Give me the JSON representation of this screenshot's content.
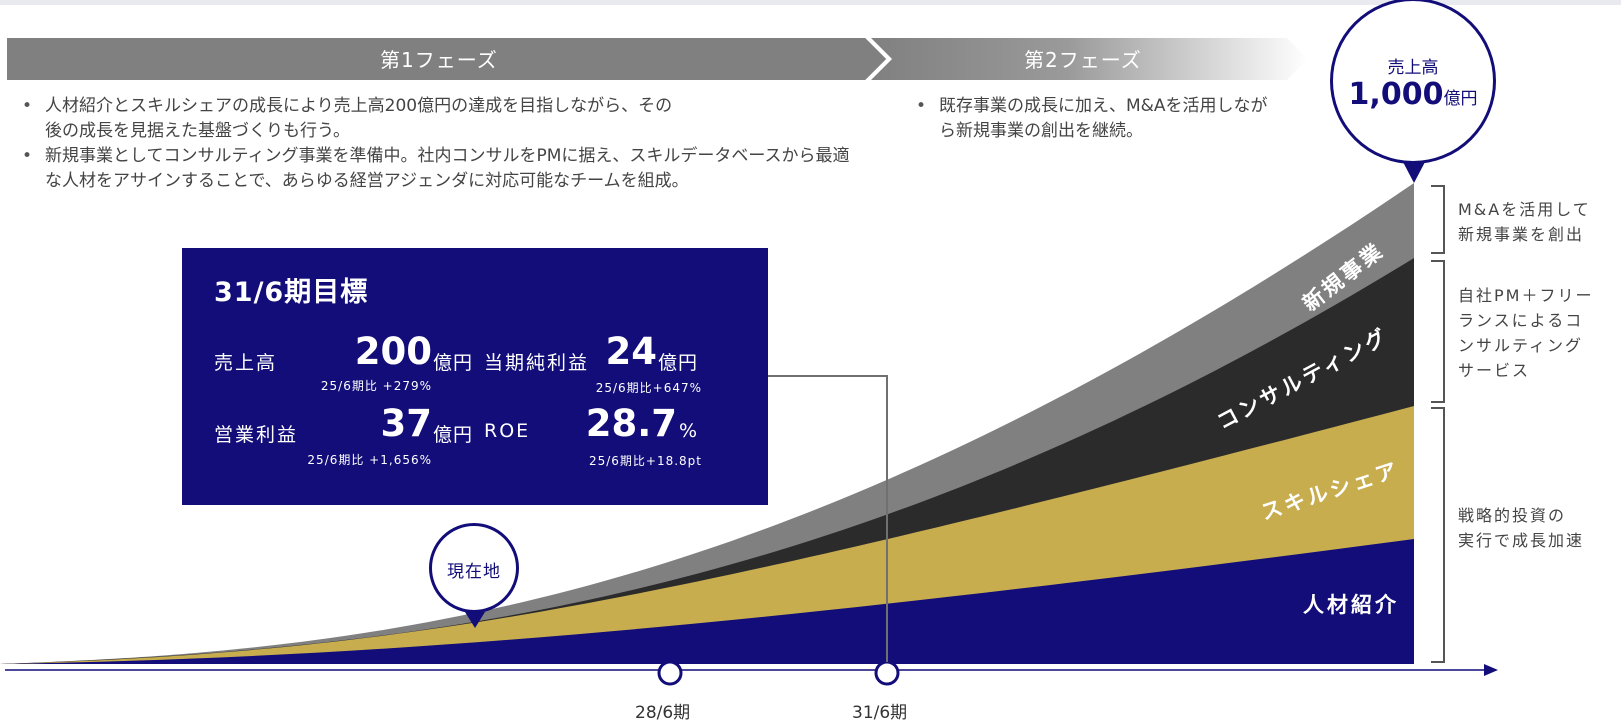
{
  "phases": [
    {
      "label": "第1フェーズ"
    },
    {
      "label": "第2フェーズ"
    }
  ],
  "phase1_bullets": [
    "人材紹介とスキルシェアの成長により売上高200億円の達成を目指しながら、その後の成長を見据えた基盤づくりも行う。",
    "新規事業としてコンサルティング事業を準備中。社内コンサルをPMに据え、スキルデータベースから最適な人材をアサインすることで、あらゆる経営アジェンダに対応可能なチームを組成。"
  ],
  "phase2_bullets": [
    "既存事業の成長に加え、M&Aを活用しながら新規事業の創出を継続。"
  ],
  "target": {
    "title": "31/6期目標",
    "metrics": [
      {
        "label": "売上高",
        "value": "200",
        "unit": "億円",
        "compare": "25/6期比 +279%"
      },
      {
        "label": "当期純利益",
        "value": "24",
        "unit": "億円",
        "compare": "25/6期比+647%"
      },
      {
        "label": "営業利益",
        "value": "37",
        "unit": "億円",
        "compare": "25/6期比 +1,656%"
      },
      {
        "label": "ROE",
        "value": "28.7",
        "unit": "%",
        "compare": "25/6期比+18.8pt"
      }
    ]
  },
  "goal_bubble": {
    "label": "売上高",
    "value": "1,000",
    "unit": "億円"
  },
  "current_marker": "現在地",
  "segments": [
    {
      "name": "人材紹介",
      "color": "#120d78"
    },
    {
      "name": "スキルシェア",
      "color": "#c8ad4f"
    },
    {
      "name": "コンサルティング",
      "color": "#2b2b2b"
    },
    {
      "name": "新規事業",
      "color": "#808080"
    }
  ],
  "side_notes": [
    "M&Aを活用して\n新規事業を創出",
    "自社PM＋フリー\nランスによるコ\nンサルティング\nサービス",
    "戦略的投資の\n実行で成長加速"
  ],
  "periods": [
    "28/6期",
    "31/6期"
  ]
}
